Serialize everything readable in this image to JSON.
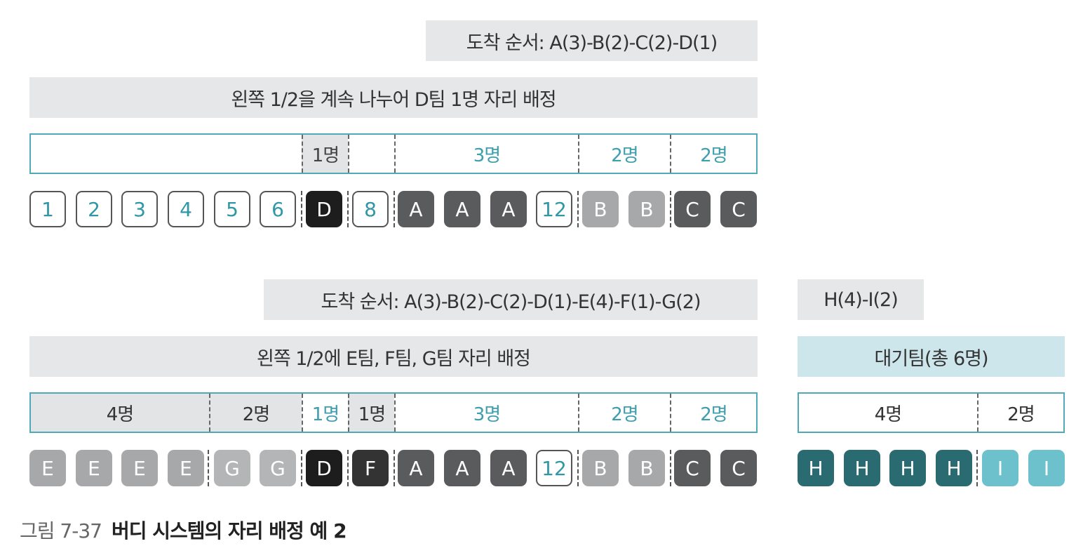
{
  "top": {
    "order_label": "도착 순서: A(3)-B(2)-C(2)-D(1)",
    "header": "왼쪽 1/2을 계속 나누어 D팀 1명 자리 배정",
    "segments": [
      "",
      "1명",
      "",
      "3명",
      "2명",
      "2명"
    ],
    "cells": [
      "1",
      "2",
      "3",
      "4",
      "5",
      "6",
      "D",
      "8",
      "A",
      "A",
      "A",
      "12",
      "B",
      "B",
      "C",
      "C"
    ]
  },
  "bottom": {
    "order_label": "도착 순서: A(3)-B(2)-C(2)-D(1)-E(4)-F(1)-G(2)",
    "header": "왼쪽 1/2에 E팀, F팀, G팀 자리 배정",
    "segments": [
      "4명",
      "2명",
      "1명",
      "1명",
      "3명",
      "2명",
      "2명"
    ],
    "cells": [
      "E",
      "E",
      "E",
      "E",
      "G",
      "G",
      "D",
      "F",
      "A",
      "A",
      "A",
      "12",
      "B",
      "B",
      "C",
      "C"
    ]
  },
  "waiting": {
    "order_label": "H(4)-I(2)",
    "header": "대기팀(총 6명)",
    "segments": [
      "4명",
      "2명"
    ],
    "cells": [
      "H",
      "H",
      "H",
      "H",
      "I",
      "I"
    ]
  },
  "caption": {
    "number": "그림 7-37",
    "title": "버디 시스템의 자리 배정 예 2"
  },
  "colors": {
    "accent_teal": "#4fa9b6",
    "dark_teal": "#2a6b72",
    "light_teal": "#6cc1cc",
    "label_gray": "#e6e7e8"
  }
}
